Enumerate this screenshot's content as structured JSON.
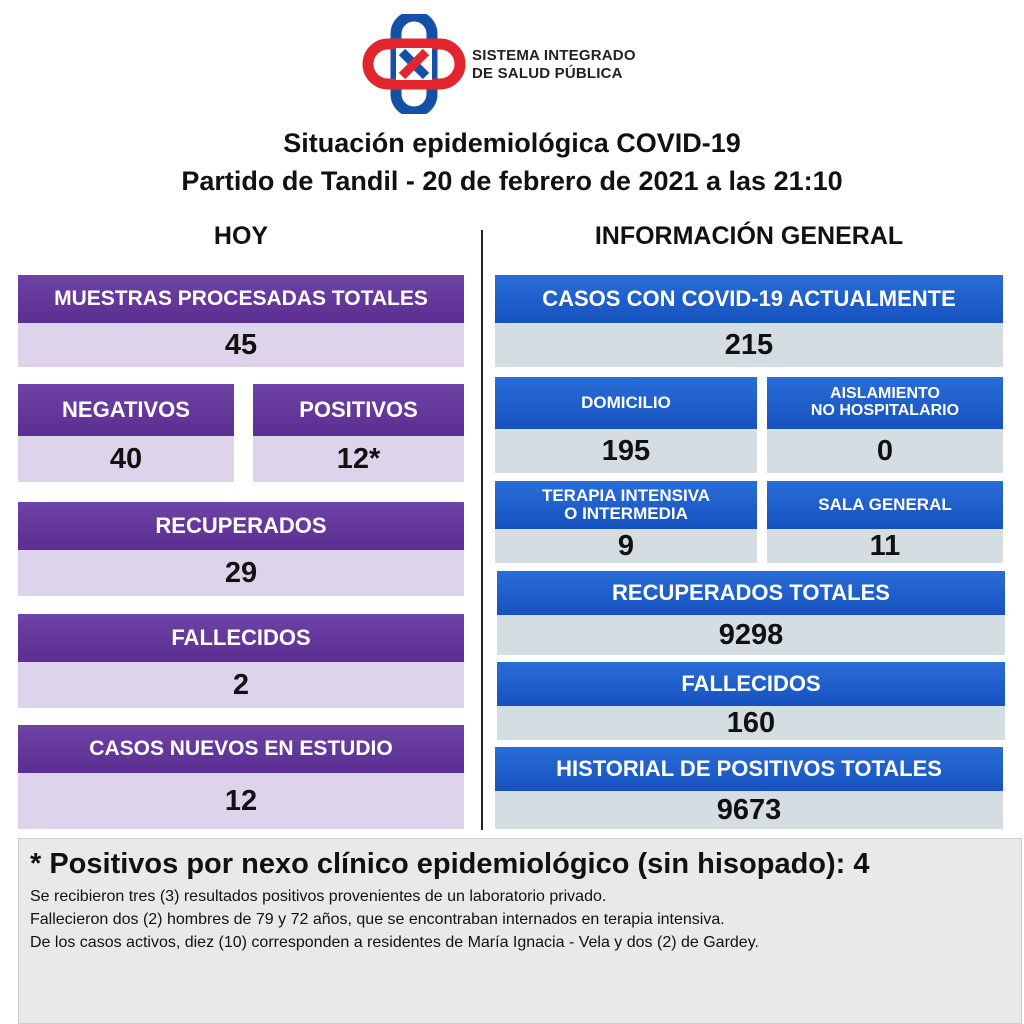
{
  "logo": {
    "line1": "SISTEMA INTEGRADO",
    "line2": "DE SALUD PÚBLICA",
    "colors": {
      "red": "#e3262d",
      "blue": "#1450a8"
    }
  },
  "title": {
    "line1": "Situación epidemiológica COVID-19",
    "line2": "Partido de Tandil - 20 de febrero de 2021 a las 21:10"
  },
  "hoy": {
    "heading": "HOY",
    "muestras": {
      "label": "MUESTRAS PROCESADAS TOTALES",
      "value": "45"
    },
    "negativos": {
      "label": "NEGATIVOS",
      "value": "40"
    },
    "positivos": {
      "label": "POSITIVOS",
      "value": "12*"
    },
    "recuperados": {
      "label": "RECUPERADOS",
      "value": "29"
    },
    "fallecidos": {
      "label": "FALLECIDOS",
      "value": "2"
    },
    "casos_nuevos": {
      "label": "CASOS NUEVOS EN ESTUDIO",
      "value": "12"
    }
  },
  "general": {
    "heading": "INFORMACIÓN GENERAL",
    "casos_actuales": {
      "label": "CASOS CON COVID-19 ACTUALMENTE",
      "value": "215"
    },
    "domicilio": {
      "label": "DOMICILIO",
      "value": "195"
    },
    "aislamiento": {
      "label_line1": "AISLAMIENTO",
      "label_line2": "NO HOSPITALARIO",
      "value": "0"
    },
    "terapia": {
      "label_line1": "TERAPIA INTENSIVA",
      "label_line2": "O INTERMEDIA",
      "value": "9"
    },
    "sala": {
      "label": "SALA GENERAL",
      "value": "11"
    },
    "recuperados_totales": {
      "label": "RECUPERADOS TOTALES",
      "value": "9298"
    },
    "fallecidos": {
      "label": "FALLECIDOS",
      "value": "160"
    },
    "historial": {
      "label": "HISTORIAL DE POSITIVOS TOTALES",
      "value": "9673"
    }
  },
  "notes": {
    "heading": "* Positivos por nexo clínico epidemiológico (sin hisopado): 4",
    "lines": [
      "Se recibieron tres (3) resultados positivos provenientes de un laboratorio privado.",
      "Fallecieron dos (2) hombres de 79 y 72 años, que se encontraban internados en terapia intensiva.",
      "De los casos activos, diez (10) corresponden a residentes de María Ignacia - Vela y dos (2) de Gardey."
    ]
  },
  "colors": {
    "purple": "#5f3494",
    "lavender": "#ddd4ec",
    "blue": "#1a58c8",
    "grey_blue": "#d4dde2"
  }
}
